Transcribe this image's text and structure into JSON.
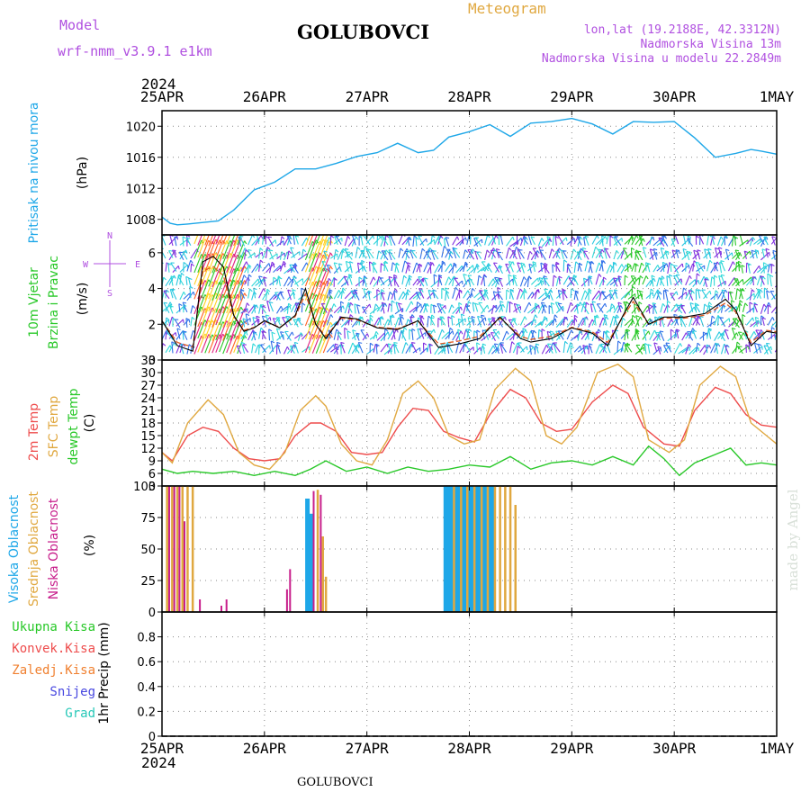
{
  "header": {
    "model_label": "Model",
    "model_name": "wrf-nmm_v3.9.1 e1km",
    "station": "GOLUBOVCI",
    "product": "Meteogram",
    "lonlat": "lon,lat (19.2188E, 42.3312N)",
    "elevation": "Nadmorska Visina 13m",
    "model_elevation": "Nadmorska Visina u modelu 22.2849m",
    "footer_station": "GOLUBOVCI",
    "watermark": "made by Angel"
  },
  "time_axis": {
    "year": "2024",
    "labels": [
      "25APR",
      "26APR",
      "27APR",
      "28APR",
      "29APR",
      "30APR",
      "1MAY"
    ]
  },
  "colors": {
    "pressure": "#1ea7e8",
    "temp2m": "#ee4c4c",
    "sfc_temp": "#e0a840",
    "dewpoint": "#28c828",
    "cloud_high": "#1ea7e8",
    "cloud_mid": "#e0a840",
    "cloud_low": "#c8208c",
    "wind_speed": "#000000",
    "gust": "#e05a20",
    "precip_total": "#28c828",
    "precip_conv": "#ee4c4c",
    "precip_frozen": "#f08030",
    "snow": "#4848e0",
    "hail": "#28c8b8",
    "violet": "#b050e0"
  },
  "chart_data": [
    {
      "type": "line",
      "panel": "pressure",
      "ylabels": [
        "Pritisak na nivou mora",
        "(hPa)"
      ],
      "ylim": [
        1006,
        1022
      ],
      "yticks": [
        1008,
        1012,
        1016,
        1020
      ],
      "x_days": [
        0,
        0.08,
        0.15,
        0.25,
        0.4,
        0.55,
        0.7,
        0.9,
        1.1,
        1.3,
        1.5,
        1.7,
        1.9,
        2.1,
        2.3,
        2.5,
        2.65,
        2.8,
        3.0,
        3.2,
        3.4,
        3.6,
        3.8,
        4.0,
        4.2,
        4.4,
        4.6,
        4.8,
        5.0,
        5.2,
        5.4,
        5.6,
        5.75,
        5.85,
        6.0
      ],
      "values": [
        1008.3,
        1007.5,
        1007.3,
        1007.4,
        1007.6,
        1007.8,
        1009.2,
        1011.8,
        1012.8,
        1014.5,
        1014.5,
        1015.2,
        1016.1,
        1016.6,
        1017.8,
        1016.6,
        1016.9,
        1018.6,
        1019.3,
        1020.2,
        1018.7,
        1020.4,
        1020.6,
        1021.0,
        1020.3,
        1019.0,
        1020.6,
        1020.5,
        1020.6,
        1018.5,
        1016.0,
        1016.5,
        1017.0,
        1016.8,
        1016.4
      ]
    },
    {
      "type": "line",
      "panel": "wind",
      "ylabels": [
        "10m Vjetar",
        "Brzina i Pravac",
        "(m/s)"
      ],
      "compass": [
        "W",
        "E",
        "N",
        "S"
      ],
      "ylim": [
        0,
        7
      ],
      "yticks": [
        0,
        2,
        4,
        6
      ],
      "x_days": [
        0,
        0.15,
        0.3,
        0.4,
        0.5,
        0.6,
        0.7,
        0.8,
        0.9,
        1.0,
        1.15,
        1.3,
        1.4,
        1.5,
        1.6,
        1.75,
        1.9,
        2.1,
        2.3,
        2.5,
        2.7,
        2.9,
        3.1,
        3.3,
        3.5,
        3.6,
        3.8,
        4.0,
        4.2,
        4.35,
        4.5,
        4.6,
        4.75,
        4.9,
        5.1,
        5.3,
        5.5,
        5.6,
        5.75,
        5.9,
        6.0
      ],
      "values": [
        2.2,
        0.8,
        0.5,
        5.5,
        5.8,
        5.2,
        2.5,
        1.6,
        1.8,
        2.2,
        1.8,
        2.5,
        4.0,
        2.0,
        1.2,
        2.4,
        2.3,
        1.8,
        1.7,
        2.2,
        0.7,
        0.9,
        1.2,
        2.4,
        1.2,
        1.0,
        1.2,
        1.8,
        1.5,
        0.8,
        2.5,
        3.5,
        2.0,
        2.4,
        2.4,
        2.6,
        3.4,
        2.8,
        0.8,
        1.6,
        1.5
      ]
    },
    {
      "type": "line",
      "panel": "temperature",
      "ylabels": [
        "2m Temp",
        "SFC Temp",
        "dewpt Temp",
        "(C)"
      ],
      "ylim": [
        3,
        33
      ],
      "yticks": [
        3,
        6,
        9,
        12,
        15,
        18,
        21,
        24,
        27,
        30,
        33
      ],
      "series": [
        {
          "name": "2m Temp",
          "x_days": [
            0,
            0.1,
            0.25,
            0.4,
            0.55,
            0.7,
            0.85,
            1.0,
            1.15,
            1.3,
            1.45,
            1.55,
            1.7,
            1.85,
            2.0,
            2.15,
            2.3,
            2.45,
            2.6,
            2.75,
            2.9,
            3.05,
            3.2,
            3.4,
            3.55,
            3.7,
            3.85,
            4.0,
            4.2,
            4.4,
            4.55,
            4.7,
            4.9,
            5.05,
            5.2,
            5.4,
            5.55,
            5.7,
            5.85,
            6.0
          ],
          "values": [
            11.0,
            9.0,
            15.0,
            17.0,
            16.0,
            12.0,
            9.5,
            9.0,
            9.5,
            15.0,
            18.0,
            18.0,
            16.0,
            11.0,
            10.5,
            11.0,
            17.0,
            21.5,
            21.0,
            16.0,
            14.5,
            13.5,
            20.0,
            26.0,
            24.0,
            18.0,
            16.0,
            16.5,
            23.0,
            27.0,
            25.0,
            17.0,
            13.0,
            12.5,
            21.0,
            26.5,
            25.0,
            20.0,
            17.5,
            17.0
          ]
        },
        {
          "name": "SFC Temp",
          "x_days": [
            0,
            0.1,
            0.25,
            0.45,
            0.6,
            0.75,
            0.9,
            1.05,
            1.2,
            1.35,
            1.5,
            1.6,
            1.75,
            1.9,
            2.05,
            2.2,
            2.35,
            2.5,
            2.65,
            2.8,
            2.95,
            3.1,
            3.25,
            3.45,
            3.6,
            3.75,
            3.9,
            4.05,
            4.25,
            4.45,
            4.6,
            4.75,
            4.95,
            5.1,
            5.25,
            5.45,
            5.6,
            5.75,
            5.9,
            6.0
          ],
          "values": [
            11.0,
            8.5,
            18.0,
            23.5,
            20.0,
            11.0,
            8.0,
            7.0,
            11.0,
            21.0,
            24.5,
            22.0,
            13.0,
            9.0,
            8.0,
            14.0,
            25.0,
            28.0,
            24.0,
            15.0,
            13.0,
            14.0,
            26.0,
            31.0,
            28.0,
            15.0,
            13.0,
            17.0,
            30.0,
            32.0,
            29.0,
            14.0,
            11.0,
            14.0,
            27.0,
            31.5,
            29.0,
            18.0,
            15.0,
            13.0
          ]
        },
        {
          "name": "dewpt Temp",
          "x_days": [
            0,
            0.15,
            0.3,
            0.5,
            0.7,
            0.9,
            1.1,
            1.3,
            1.45,
            1.6,
            1.8,
            2.0,
            2.2,
            2.4,
            2.6,
            2.8,
            3.0,
            3.2,
            3.4,
            3.6,
            3.8,
            4.0,
            4.2,
            4.4,
            4.6,
            4.75,
            4.9,
            5.05,
            5.2,
            5.4,
            5.55,
            5.7,
            5.85,
            6.0
          ],
          "values": [
            7.0,
            6.0,
            6.5,
            6.0,
            6.5,
            5.5,
            6.5,
            5.5,
            7.0,
            9.0,
            6.5,
            7.5,
            6.0,
            7.5,
            6.5,
            7.0,
            8.0,
            7.5,
            10.0,
            7.0,
            8.5,
            9.0,
            8.0,
            10.0,
            8.0,
            12.5,
            9.5,
            5.5,
            8.5,
            10.5,
            12.0,
            8.0,
            8.5,
            8.0
          ]
        }
      ]
    },
    {
      "type": "bar",
      "panel": "cloud",
      "ylabels": [
        "Visoka Oblacnost",
        "Srednja Oblacnost",
        "Niska Oblacnost",
        "(%)"
      ],
      "ylim": [
        0,
        100
      ],
      "yticks": [
        0,
        25,
        50,
        75,
        100
      ],
      "series": [
        {
          "name": "Visoka Oblacnost",
          "x_days": [
            1.42,
            1.46,
            2.77,
            2.8,
            2.83,
            2.86,
            2.89,
            2.92,
            2.95,
            2.98,
            3.01,
            3.04,
            3.07,
            3.1,
            3.13,
            3.16,
            3.19,
            3.22
          ],
          "values": [
            90,
            78,
            100,
            100,
            100,
            100,
            100,
            100,
            100,
            100,
            100,
            100,
            100,
            100,
            100,
            100,
            100,
            100
          ]
        },
        {
          "name": "Srednja Oblacnost",
          "x_days": [
            0.05,
            0.1,
            0.15,
            0.2,
            0.25,
            0.3,
            1.52,
            1.57,
            1.6,
            2.85,
            2.92,
            2.98,
            3.05,
            3.12,
            3.18,
            3.25,
            3.3,
            3.35,
            3.4,
            3.45
          ],
          "values": [
            100,
            100,
            100,
            100,
            100,
            100,
            97,
            60,
            28,
            100,
            100,
            100,
            100,
            100,
            100,
            100,
            100,
            100,
            100,
            85
          ]
        },
        {
          "name": "Niska Oblacnost",
          "x_days": [
            0.07,
            0.12,
            0.17,
            0.22,
            0.37,
            0.58,
            0.63,
            1.22,
            1.25,
            1.48,
            1.55
          ],
          "values": [
            100,
            100,
            100,
            72,
            10,
            5,
            10,
            18,
            34,
            96,
            93
          ]
        }
      ]
    },
    {
      "type": "line",
      "panel": "precipitation",
      "ylabels": [
        "1hr Precip (mm)"
      ],
      "legend": [
        "Ukupna Kisa",
        "Konvek.Kisa",
        "Zaledj.Kisa",
        "Snijeg",
        "Grad"
      ],
      "ylim": [
        0,
        1
      ],
      "yticks": [
        0,
        0.2,
        0.4,
        0.6,
        0.8
      ],
      "values": []
    }
  ]
}
